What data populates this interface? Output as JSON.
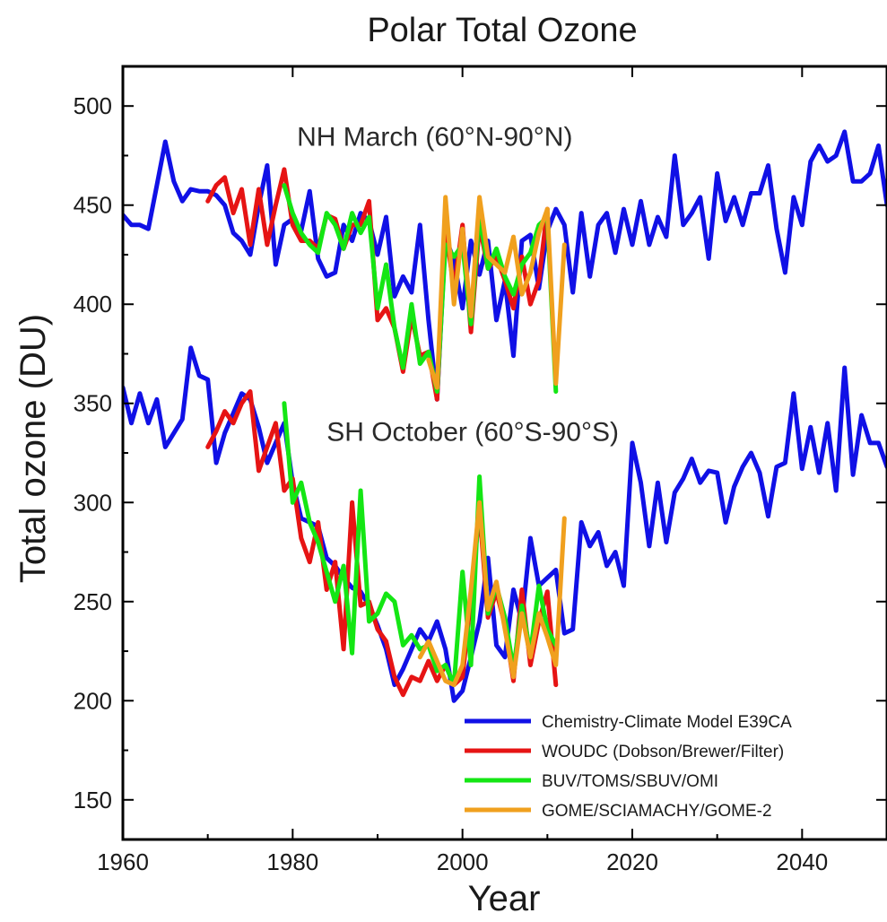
{
  "colors": {
    "model": "#1010e6",
    "woudc": "#e61414",
    "buv": "#14e614",
    "gome": "#f0a01e"
  },
  "chart_data": {
    "type": "line",
    "title": "Polar Total Ozone",
    "xlabel": "Year",
    "ylabel": "Total ozone (DU)",
    "xlim": [
      1960,
      2050
    ],
    "ylim": [
      130,
      520
    ],
    "xticks": [
      1960,
      1980,
      2000,
      2020,
      2040
    ],
    "yticks": [
      150,
      200,
      250,
      300,
      350,
      400,
      450,
      500
    ],
    "grid": false,
    "legend_position": "bottom-right",
    "annotations": [
      {
        "text": "NH March (60°N-90°N)",
        "x": 1980.5,
        "y": 480
      },
      {
        "text": "SH October (60°S-90°S)",
        "x": 1984,
        "y": 331
      }
    ],
    "legend": [
      {
        "key": "model",
        "label": "Chemistry-Climate Model E39CA"
      },
      {
        "key": "woudc",
        "label": "WOUDC (Dobson/Brewer/Filter)"
      },
      {
        "key": "buv",
        "label": "BUV/TOMS/SBUV/OMI"
      },
      {
        "key": "gome",
        "label": "GOME/SCIAMACHY/GOME-2"
      }
    ],
    "series": [
      {
        "key": "model",
        "x": [
          1960,
          1961,
          1962,
          1963,
          1964,
          1965,
          1966,
          1967,
          1968,
          1969,
          1970,
          1971,
          1972,
          1973,
          1974,
          1975,
          1976,
          1977,
          1978,
          1979,
          1980,
          1981,
          1982,
          1983,
          1984,
          1985,
          1986,
          1987,
          1988,
          1989,
          1990,
          1991,
          1992,
          1993,
          1994,
          1995,
          1996,
          1997,
          1998,
          1999,
          2000,
          2001,
          2002,
          2003,
          2004,
          2005,
          2006,
          2007,
          2008,
          2009,
          2010,
          2011,
          2012,
          2013,
          2014,
          2015,
          2016,
          2017,
          2018,
          2019,
          2020,
          2021,
          2022,
          2023,
          2024,
          2025,
          2026,
          2027,
          2028,
          2029,
          2030,
          2031,
          2032,
          2033,
          2034,
          2035,
          2036,
          2037,
          2038,
          2039,
          2040,
          2041,
          2042,
          2043,
          2044,
          2045,
          2046,
          2047,
          2048,
          2049,
          2050
        ],
        "y": [
          445,
          440,
          440,
          438,
          460,
          482,
          462,
          452,
          458,
          457,
          457,
          455,
          450,
          436,
          432,
          425,
          450,
          470,
          420,
          440,
          443,
          437,
          457,
          423,
          414,
          416,
          440,
          432,
          446,
          442,
          425,
          444,
          404,
          414,
          406,
          440,
          392,
          352,
          434,
          422,
          398,
          432,
          415,
          432,
          392,
          412,
          374,
          432,
          435,
          408,
          437,
          448,
          440,
          406,
          446,
          414,
          440,
          446,
          426,
          448,
          430,
          452,
          430,
          444,
          434,
          475,
          440,
          446,
          454,
          423,
          466,
          442,
          454,
          440,
          456,
          456,
          470,
          438,
          416,
          454,
          440,
          472,
          480,
          472,
          475,
          487,
          462,
          462,
          466,
          480,
          450
        ],
        "annotation": "NH"
      },
      {
        "key": "model",
        "x": [
          1960,
          1961,
          1962,
          1963,
          1964,
          1965,
          1966,
          1967,
          1968,
          1969,
          1970,
          1971,
          1972,
          1973,
          1974,
          1975,
          1976,
          1977,
          1978,
          1979,
          1980,
          1981,
          1982,
          1983,
          1984,
          1985,
          1986,
          1987,
          1988,
          1989,
          1990,
          1991,
          1992,
          1993,
          1994,
          1995,
          1996,
          1997,
          1998,
          1999,
          2000,
          2001,
          2002,
          2003,
          2004,
          2005,
          2006,
          2007,
          2008,
          2009,
          2010,
          2011,
          2012,
          2013,
          2014,
          2015,
          2016,
          2017,
          2018,
          2019,
          2020,
          2021,
          2022,
          2023,
          2024,
          2025,
          2026,
          2027,
          2028,
          2029,
          2030,
          2031,
          2032,
          2033,
          2034,
          2035,
          2036,
          2037,
          2038,
          2039,
          2040,
          2041,
          2042,
          2043,
          2044,
          2045,
          2046,
          2047,
          2048,
          2049,
          2050
        ],
        "y": [
          358,
          340,
          355,
          340,
          352,
          328,
          335,
          342,
          378,
          364,
          362,
          320,
          335,
          345,
          355,
          352,
          338,
          320,
          330,
          340,
          310,
          292,
          290,
          288,
          272,
          268,
          262,
          257,
          255,
          248,
          238,
          226,
          208,
          216,
          226,
          236,
          230,
          240,
          226,
          200,
          205,
          222,
          240,
          272,
          228,
          222,
          256,
          240,
          282,
          258,
          262,
          266,
          234,
          236,
          290,
          278,
          285,
          268,
          275,
          258,
          330,
          310,
          278,
          310,
          280,
          305,
          312,
          322,
          310,
          316,
          315,
          290,
          308,
          318,
          325,
          315,
          293,
          318,
          320,
          355,
          317,
          338,
          315,
          340,
          306,
          368,
          314,
          344,
          330,
          330,
          318
        ]
      },
      {
        "key": "woudc",
        "x": [
          1970,
          1971,
          1972,
          1973,
          1974,
          1975,
          1976,
          1977,
          1978,
          1979,
          1980,
          1981,
          1982,
          1983,
          1984,
          1985,
          1986,
          1987,
          1988,
          1989,
          1990,
          1991,
          1992,
          1993,
          1994,
          1995,
          1996,
          1997,
          1998,
          1999,
          2000,
          2001,
          2002,
          2003,
          2004,
          2005,
          2006,
          2007,
          2008,
          2009,
          2010
        ],
        "y": [
          452,
          460,
          464,
          446,
          458,
          430,
          458,
          430,
          450,
          468,
          440,
          432,
          432,
          428,
          445,
          443,
          428,
          440,
          440,
          452,
          392,
          398,
          388,
          366,
          394,
          374,
          376,
          352,
          438,
          408,
          440,
          386,
          440,
          418,
          424,
          412,
          398,
          424,
          400,
          412,
          448
        ],
        "annotation": "NH"
      },
      {
        "key": "woudc",
        "x": [
          1970,
          1971,
          1972,
          1973,
          1974,
          1975,
          1976,
          1977,
          1978,
          1979,
          1980,
          1981,
          1982,
          1983,
          1984,
          1985,
          1986,
          1987,
          1988,
          1989,
          1990,
          1991,
          1992,
          1993,
          1994,
          1995,
          1996,
          1997,
          1998,
          1999,
          2000,
          2001,
          2002,
          2003,
          2004,
          2005,
          2006,
          2007,
          2008,
          2009,
          2010,
          2011
        ],
        "y": [
          328,
          336,
          346,
          340,
          350,
          356,
          316,
          328,
          340,
          306,
          312,
          282,
          270,
          290,
          256,
          270,
          226,
          300,
          248,
          250,
          236,
          230,
          212,
          203,
          212,
          210,
          220,
          210,
          218,
          208,
          212,
          252,
          296,
          242,
          255,
          238,
          210,
          256,
          218,
          240,
          255,
          208
        ]
      },
      {
        "key": "buv",
        "x": [
          1979,
          1980,
          1981,
          1982,
          1983,
          1984,
          1985,
          1986,
          1987,
          1988,
          1989,
          1990,
          1991,
          1992,
          1993,
          1994,
          1995,
          1996,
          1997,
          1998,
          1999,
          2000,
          2001,
          2002,
          2003,
          2004,
          2005,
          2006,
          2007,
          2008,
          2009,
          2010,
          2011
        ],
        "y": [
          460,
          446,
          436,
          430,
          426,
          446,
          440,
          428,
          446,
          436,
          444,
          398,
          420,
          388,
          368,
          400,
          370,
          376,
          356,
          430,
          424,
          430,
          390,
          445,
          418,
          428,
          414,
          405,
          420,
          426,
          440,
          444,
          356
        ],
        "annotation": "NH"
      },
      {
        "key": "buv",
        "x": [
          1979,
          1980,
          1981,
          1982,
          1983,
          1984,
          1985,
          1986,
          1987,
          1988,
          1989,
          1990,
          1991,
          1992,
          1993,
          1994,
          1995,
          1996,
          1997,
          1998,
          1999,
          2000,
          2001,
          2002,
          2003,
          2004,
          2005,
          2006,
          2007,
          2008,
          2009,
          2010,
          2011
        ],
        "y": [
          350,
          300,
          310,
          290,
          280,
          265,
          250,
          268,
          224,
          306,
          240,
          244,
          254,
          250,
          228,
          233,
          226,
          228,
          215,
          218,
          208,
          265,
          218,
          313,
          244,
          258,
          242,
          216,
          248,
          224,
          258,
          236,
          228
        ]
      },
      {
        "key": "gome",
        "x": [
          1996,
          1997,
          1998,
          1999,
          2000,
          2001,
          2002,
          2003,
          2004,
          2005,
          2006,
          2007,
          2008,
          2009,
          2010,
          2011,
          2012
        ],
        "y": [
          372,
          358,
          454,
          400,
          438,
          394,
          454,
          424,
          420,
          416,
          434,
          405,
          416,
          436,
          448,
          360,
          430
        ],
        "annotation": "NH"
      },
      {
        "key": "gome",
        "x": [
          1995,
          1996,
          1997,
          1998,
          1999,
          2000,
          2001,
          2002,
          2003,
          2004,
          2005,
          2006,
          2007,
          2008,
          2009,
          2010,
          2011,
          2012
        ],
        "y": [
          222,
          230,
          220,
          210,
          208,
          218,
          256,
          300,
          246,
          260,
          236,
          212,
          244,
          222,
          244,
          232,
          218,
          292
        ]
      }
    ]
  }
}
